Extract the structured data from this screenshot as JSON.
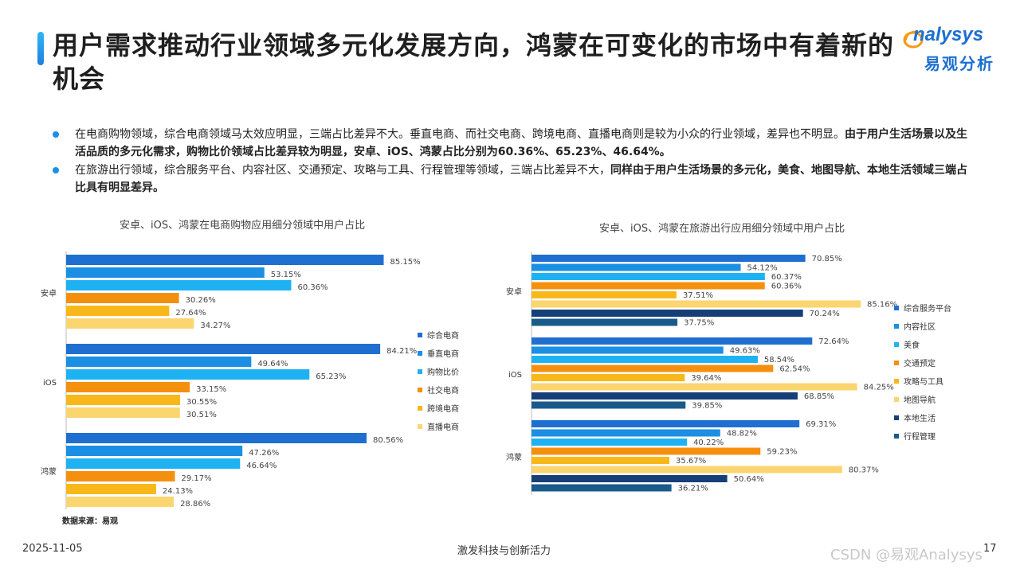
{
  "title": "用户需求推动行业领域多元化发展方向，鸿蒙在可变化的市场中有着新的机会",
  "logo": {
    "word": "nalysys",
    "cn": "易观分析"
  },
  "bullets": [
    {
      "normal": "在电商购物领域，综合电商领域马太效应明显，三端占比差异不大。垂直电商、而社交电商、跨境电商、直播电商则是较为小众的行业领域，差异也不明显。",
      "bold": "由于用户生活场景以及生活品质的多元化需求，购物比价领域占比差异较为明显，安卓、iOS、鸿蒙占比分别为60.36%、65.23%、46.64%。"
    },
    {
      "normal": "在旅游出行领域，综合服务平台、内容社区、交通预定、攻略与工具、行程管理等领域，三端占比差异不大，",
      "bold": "同样由于用户生活场景的多元化，美食、地图导航、本地生活领域三端占比具有明显差异。"
    }
  ],
  "chart_data": [
    {
      "type": "bar",
      "orientation": "horizontal",
      "title": "安卓、iOS、鸿蒙在电商购物应用细分领域中用户占比",
      "categories": [
        "安卓",
        "iOS",
        "鸿蒙"
      ],
      "series": [
        {
          "name": "综合电商",
          "color": "#1f6fd1",
          "values": [
            85.15,
            84.21,
            80.56
          ]
        },
        {
          "name": "垂直电商",
          "color": "#1a8fe3",
          "values": [
            53.15,
            49.64,
            47.26
          ]
        },
        {
          "name": "购物比价",
          "color": "#1fb2f3",
          "values": [
            60.36,
            65.23,
            46.64
          ]
        },
        {
          "name": "社交电商",
          "color": "#f5900f",
          "values": [
            30.26,
            33.15,
            29.17
          ]
        },
        {
          "name": "跨境电商",
          "color": "#f9b81a",
          "values": [
            27.64,
            30.55,
            24.13
          ]
        },
        {
          "name": "直播电商",
          "color": "#fbd56f",
          "values": [
            34.27,
            30.51,
            28.86
          ]
        }
      ],
      "xlim": [
        0,
        100
      ],
      "legend": "right"
    },
    {
      "type": "bar",
      "orientation": "horizontal",
      "title": "安卓、iOS、鸿蒙在旅游出行应用细分领域中用户占比",
      "categories": [
        "安卓",
        "iOS",
        "鸿蒙"
      ],
      "series": [
        {
          "name": "综合服务平台",
          "color": "#1f6fd1",
          "values": [
            70.85,
            72.64,
            69.31
          ]
        },
        {
          "name": "内容社区",
          "color": "#1a8fe3",
          "values": [
            54.12,
            49.63,
            48.82
          ]
        },
        {
          "name": "美食",
          "color": "#1fb2f3",
          "values": [
            60.37,
            58.54,
            40.22
          ]
        },
        {
          "name": "交通预定",
          "color": "#f5900f",
          "values": [
            60.36,
            62.54,
            59.23
          ]
        },
        {
          "name": "攻略与工具",
          "color": "#f9b81a",
          "values": [
            37.51,
            39.64,
            35.67
          ]
        },
        {
          "name": "地图导航",
          "color": "#fbd56f",
          "values": [
            85.16,
            84.25,
            80.37
          ]
        },
        {
          "name": "本地生活",
          "color": "#163f78",
          "values": [
            70.24,
            68.85,
            50.64
          ]
        },
        {
          "name": "行程管理",
          "color": "#1a5a8a",
          "values": [
            37.75,
            39.85,
            36.21
          ]
        }
      ],
      "xlim": [
        0,
        100
      ],
      "legend": "right"
    }
  ],
  "source": "数据来源：易观",
  "footer": {
    "date": "2025-11-05",
    "slogan": "激发科技与创新活力",
    "page": "17"
  },
  "watermark": "CSDN @易观Analysys"
}
